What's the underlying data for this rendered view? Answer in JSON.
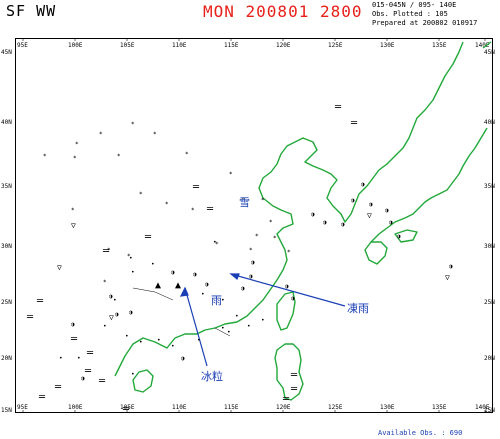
{
  "header": {
    "title": "SF WW",
    "datetime": "MON 200801 2800",
    "region": "015-045N / 095- 140E",
    "obs_plotted": "Obs. Plotted : 105",
    "prepared": "Prepared at 200802 010917"
  },
  "footer": {
    "available_obs": "Available Obs. : 690"
  },
  "axes": {
    "lon_labels": [
      "95E",
      "100E",
      "105E",
      "110E",
      "115E",
      "120E",
      "125E",
      "130E",
      "135E",
      "140E"
    ],
    "lat_labels": [
      "45N",
      "40N",
      "35N",
      "30N",
      "25N",
      "20N",
      "15N"
    ]
  },
  "annotations": {
    "snow": "雪",
    "rain": "雨",
    "freezing_rain": "凍雨",
    "ice_pellets": "冰粒"
  },
  "colors": {
    "title_red": "#e8201a",
    "coast_green": "#22a83a",
    "annotation_blue": "#1a3fb5"
  },
  "symbols": {
    "snow_mark": "*",
    "rain_mark": "•",
    "fog_mark": "═",
    "shower_mark": "▽",
    "thunder_mark": "▲",
    "drizzle_mark": "◑"
  }
}
